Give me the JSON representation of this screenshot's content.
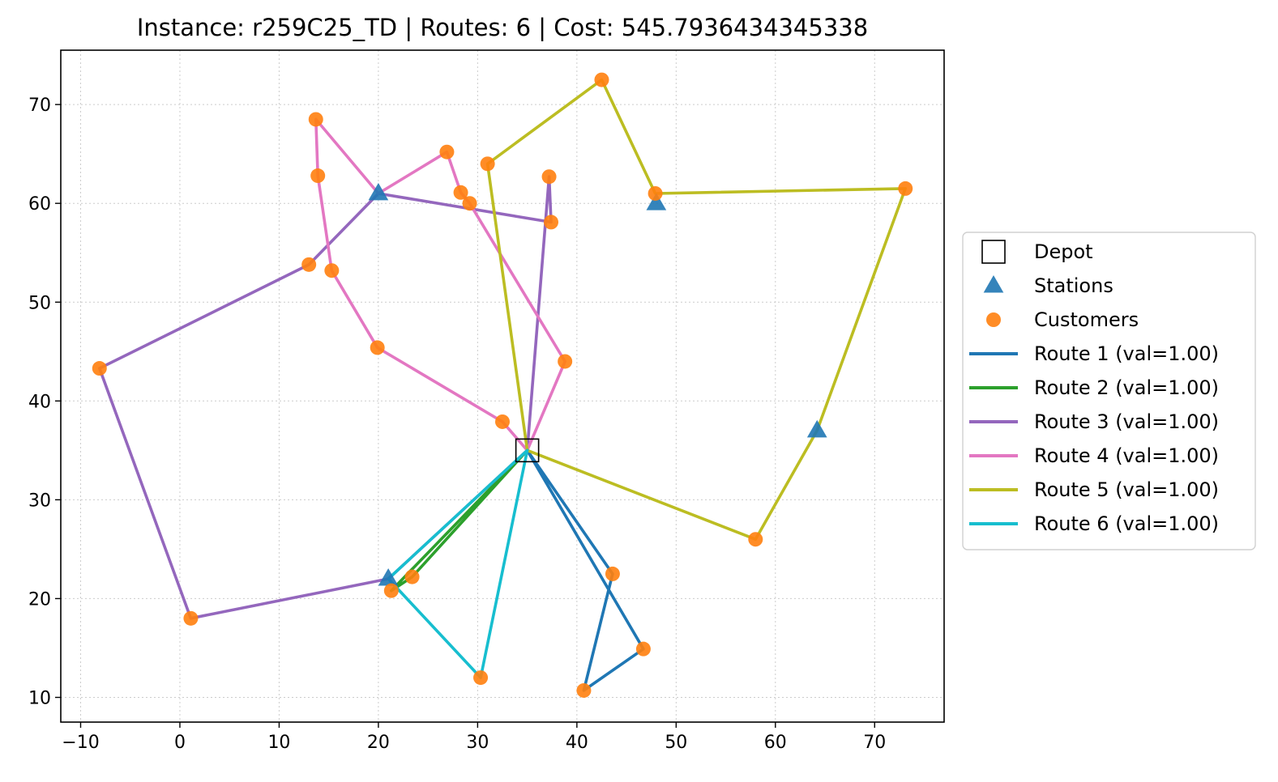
{
  "chart_data": {
    "type": "scatter",
    "title": "Instance: r259C25_TD  |  Routes: 6  |  Cost: 545.7936434345338",
    "xlabel": "",
    "ylabel": "",
    "xlim": [
      -12,
      77
    ],
    "ylim": [
      7.5,
      75.5
    ],
    "xticks": [
      -10,
      0,
      10,
      20,
      30,
      40,
      50,
      60,
      70
    ],
    "xtick_labels": [
      "−10",
      "0",
      "10",
      "20",
      "30",
      "40",
      "50",
      "60",
      "70"
    ],
    "yticks": [
      10,
      20,
      30,
      40,
      50,
      60,
      70
    ],
    "ytick_labels": [
      "10",
      "20",
      "30",
      "40",
      "50",
      "60",
      "70"
    ],
    "grid": true,
    "legend_position": "center-right, outside plot",
    "depot": {
      "label": "Depot",
      "x": 35,
      "y": 35,
      "color": "#000000"
    },
    "stations": {
      "label": "Stations",
      "color": "#1f77b4",
      "points": [
        [
          20,
          61
        ],
        [
          48,
          60
        ],
        [
          64.2,
          37
        ],
        [
          21,
          22
        ]
      ]
    },
    "customers": {
      "label": "Customers",
      "color": "#ff7f0e",
      "points": [
        [
          42.5,
          72.5
        ],
        [
          13.7,
          68.5
        ],
        [
          26.9,
          65.2
        ],
        [
          31,
          64
        ],
        [
          13.9,
          62.8
        ],
        [
          37.2,
          62.7
        ],
        [
          47.9,
          61
        ],
        [
          73.1,
          61.5
        ],
        [
          28.3,
          61.1
        ],
        [
          29.2,
          60
        ],
        [
          37.4,
          58.1
        ],
        [
          13,
          53.8
        ],
        [
          15.3,
          53.2
        ],
        [
          19.9,
          45.4
        ],
        [
          -8.1,
          43.3
        ],
        [
          38.8,
          44
        ],
        [
          32.5,
          37.9
        ],
        [
          58,
          26
        ],
        [
          43.6,
          22.5
        ],
        [
          23.4,
          22.2
        ],
        [
          21.3,
          20.8
        ],
        [
          1.1,
          18
        ],
        [
          46.7,
          14.9
        ],
        [
          30.3,
          12
        ],
        [
          40.7,
          10.7
        ]
      ]
    },
    "series": [
      {
        "name": "Route 1 (val=1.00)",
        "color": "#1f77b4",
        "points": [
          [
            35,
            35
          ],
          [
            43.6,
            22.5
          ],
          [
            40.7,
            10.7
          ],
          [
            46.7,
            14.9
          ],
          [
            35,
            35
          ]
        ]
      },
      {
        "name": "Route 2 (val=1.00)",
        "color": "#2ca02c",
        "points": [
          [
            35,
            35
          ],
          [
            23.4,
            22.2
          ],
          [
            21.3,
            20.8
          ],
          [
            35,
            35
          ]
        ]
      },
      {
        "name": "Route 3 (val=1.00)",
        "color": "#9467bd",
        "points": [
          [
            35,
            35
          ],
          [
            37.2,
            62.7
          ],
          [
            37.4,
            58.1
          ],
          [
            20,
            61
          ],
          [
            13,
            53.8
          ],
          [
            -8.1,
            43.3
          ],
          [
            1.1,
            18
          ],
          [
            21,
            22
          ],
          [
            35,
            35
          ]
        ]
      },
      {
        "name": "Route 4 (val=1.00)",
        "color": "#e377c2",
        "points": [
          [
            35,
            35
          ],
          [
            38.8,
            44
          ],
          [
            29.2,
            60
          ],
          [
            28.3,
            61.1
          ],
          [
            26.9,
            65.2
          ],
          [
            20,
            61
          ],
          [
            13.7,
            68.5
          ],
          [
            13.9,
            62.8
          ],
          [
            15.3,
            53.2
          ],
          [
            19.9,
            45.4
          ],
          [
            32.5,
            37.9
          ],
          [
            35,
            35
          ]
        ]
      },
      {
        "name": "Route 5 (val=1.00)",
        "color": "#bcbd22",
        "points": [
          [
            35,
            35
          ],
          [
            31,
            64
          ],
          [
            42.5,
            72.5
          ],
          [
            47.9,
            61
          ],
          [
            73.1,
            61.5
          ],
          [
            64.2,
            37
          ],
          [
            58,
            26
          ],
          [
            35,
            35
          ]
        ]
      },
      {
        "name": "Route 6 (val=1.00)",
        "color": "#17becf",
        "points": [
          [
            35,
            35
          ],
          [
            21,
            22
          ],
          [
            30.3,
            12
          ],
          [
            35,
            35
          ]
        ]
      }
    ]
  }
}
